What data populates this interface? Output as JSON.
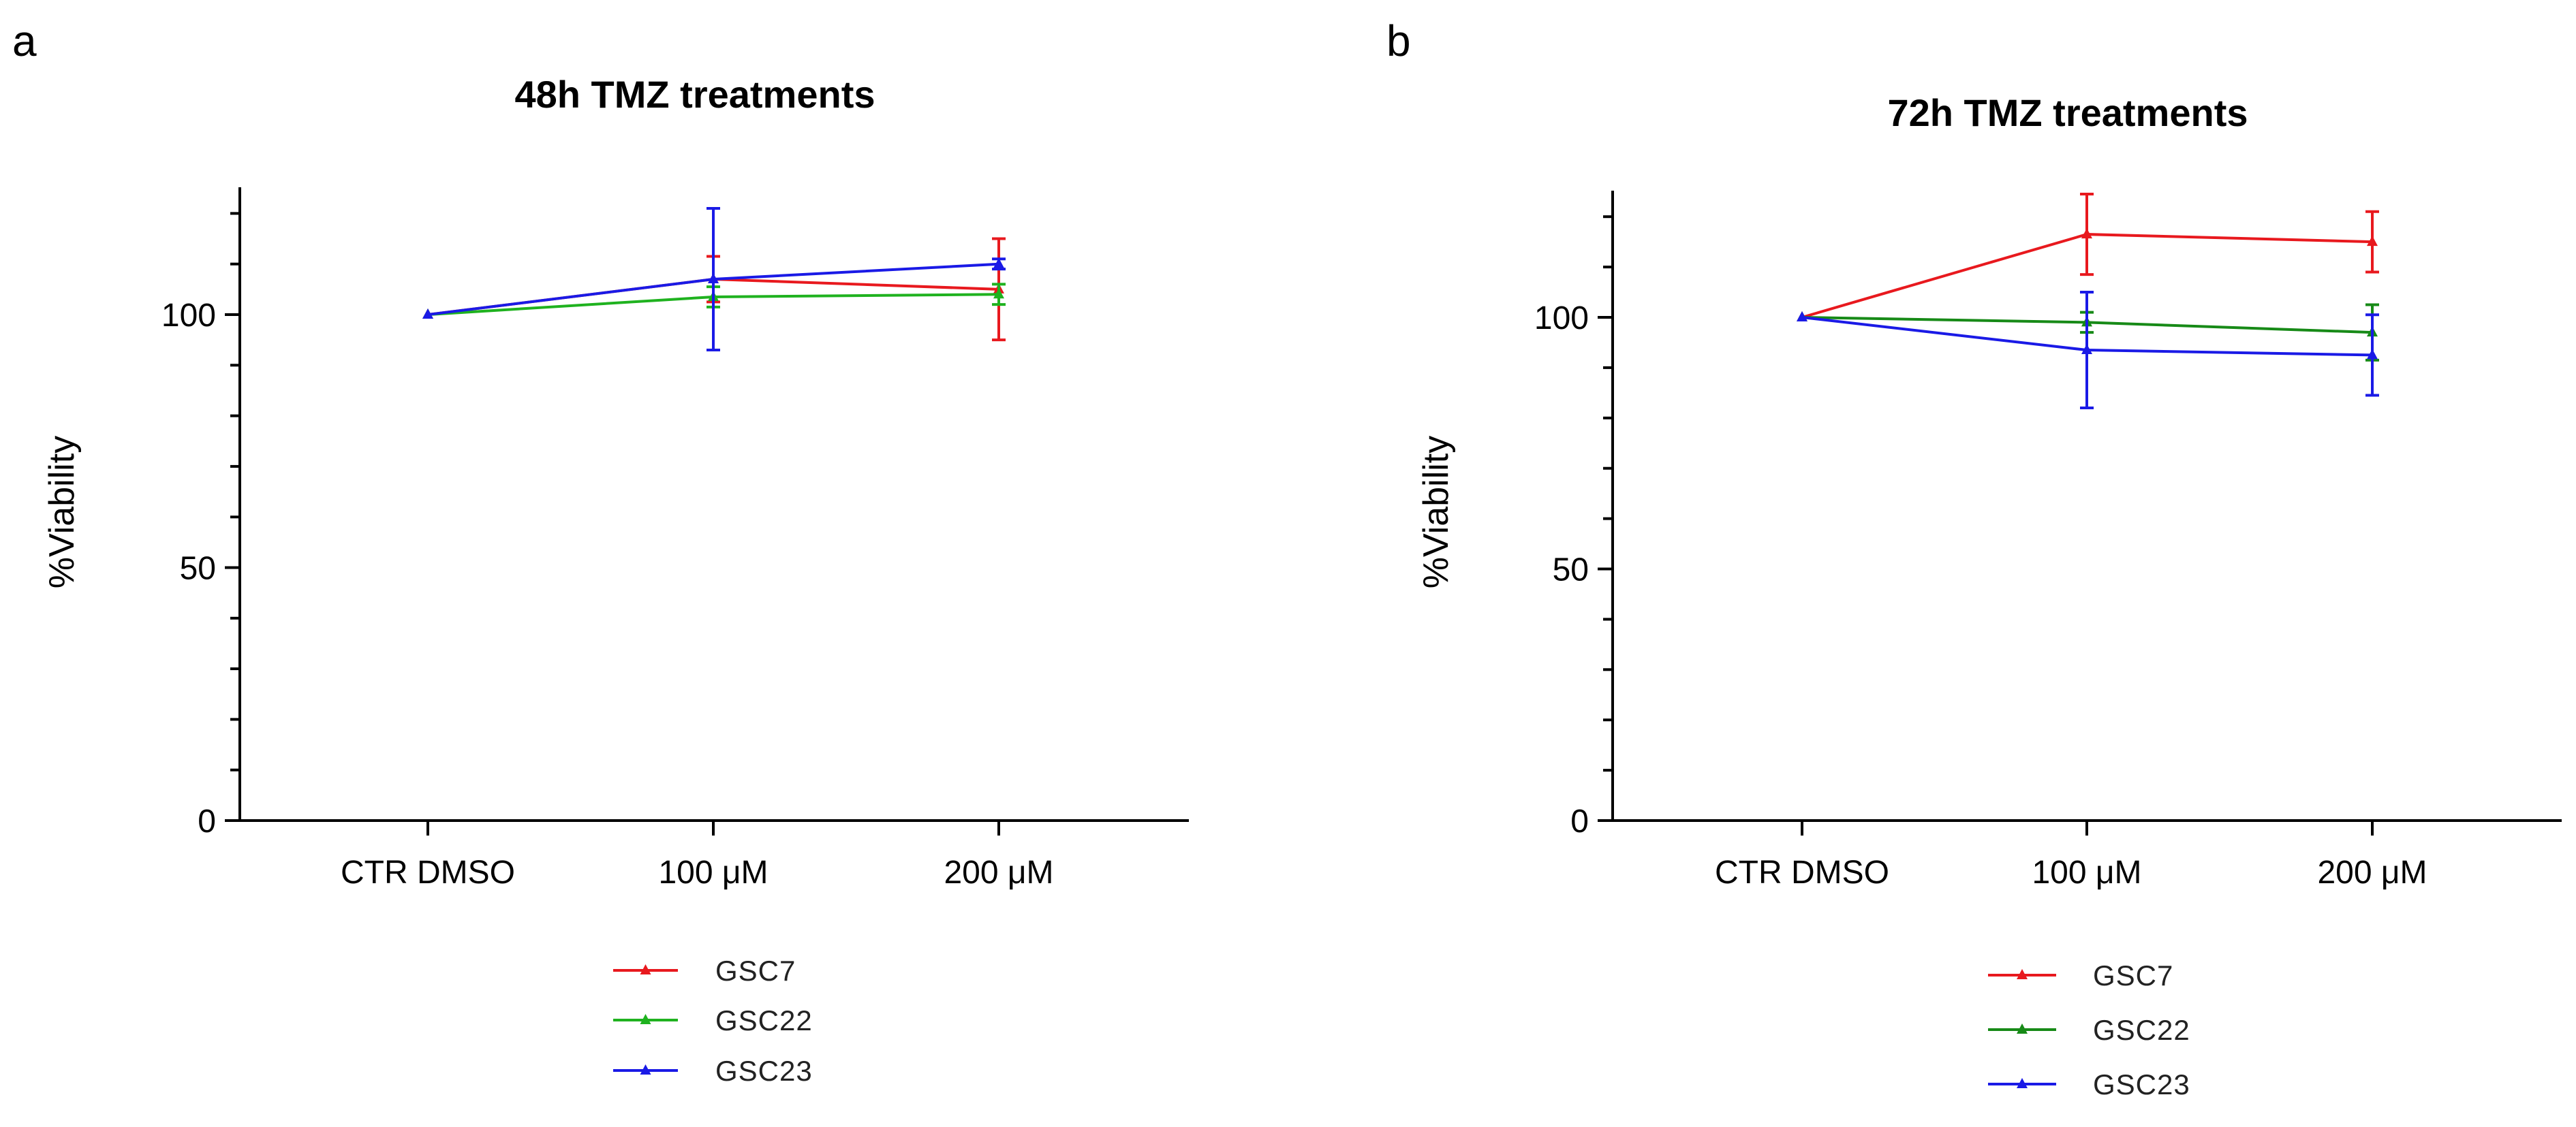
{
  "chart_data": [
    {
      "panel": "a",
      "type": "line",
      "title": "48h TMZ treatments",
      "xlabel": "",
      "ylabel": "%Viability",
      "categories": [
        "CTR DMSO",
        "100 μM",
        "200 μM"
      ],
      "ylim": [
        0,
        125
      ],
      "yticks": [
        0,
        50,
        100
      ],
      "series": [
        {
          "name": "GSC7",
          "color": "#e8191e",
          "values": [
            100,
            107,
            105
          ],
          "errors": [
            0,
            4.5,
            10
          ]
        },
        {
          "name": "GSC22",
          "color": "#1fb21f",
          "values": [
            100,
            103.5,
            104
          ],
          "errors": [
            0,
            2,
            2
          ]
        },
        {
          "name": "GSC23",
          "color": "#1a1ae6",
          "values": [
            100,
            107,
            110
          ],
          "errors": [
            0,
            14,
            1
          ]
        }
      ],
      "legend_position": "bottom"
    },
    {
      "panel": "b",
      "type": "line",
      "title": "72h TMZ treatments",
      "xlabel": "",
      "ylabel": "%Viability",
      "categories": [
        "CTR DMSO",
        "100 μM",
        "200 μM"
      ],
      "ylim": [
        0,
        125
      ],
      "yticks": [
        0,
        50,
        100
      ],
      "series": [
        {
          "name": "GSC7",
          "color": "#e8191e",
          "values": [
            100,
            116.5,
            115
          ],
          "errors": [
            0,
            8,
            6
          ]
        },
        {
          "name": "GSC22",
          "color": "#178a17",
          "values": [
            100,
            99,
            97
          ],
          "errors": [
            0,
            2,
            5.5
          ]
        },
        {
          "name": "GSC23",
          "color": "#1a1ae6",
          "values": [
            100,
            93.5,
            92.5
          ],
          "errors": [
            0,
            11.5,
            8
          ]
        }
      ],
      "legend_position": "bottom"
    }
  ]
}
